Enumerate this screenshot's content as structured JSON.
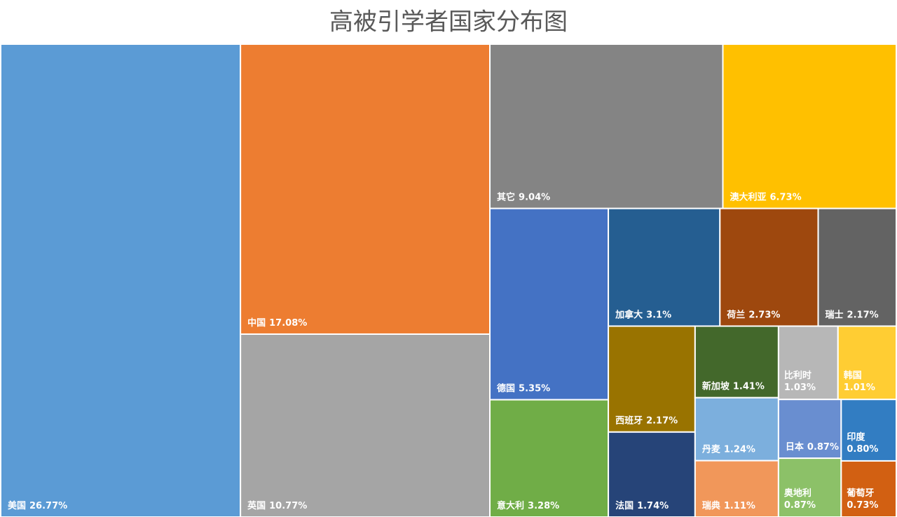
{
  "chart_data": {
    "type": "treemap",
    "title": "高被引学者国家分布图",
    "categories": [
      "美国",
      "中国",
      "英国",
      "其它",
      "澳大利亚",
      "德国",
      "意大利",
      "加拿大",
      "荷兰",
      "瑞士",
      "西班牙",
      "法国",
      "新加坡",
      "丹麦",
      "瑞典",
      "比利时",
      "韩国",
      "日本",
      "奥地利",
      "印度",
      "葡萄牙"
    ],
    "values": [
      26.77,
      17.08,
      10.77,
      9.04,
      6.73,
      5.35,
      3.28,
      3.1,
      2.73,
      2.17,
      2.17,
      1.74,
      1.41,
      1.24,
      1.11,
      1.03,
      1.01,
      0.87,
      0.87,
      0.8,
      0.73
    ],
    "value_labels": [
      "26.77%",
      "17.08%",
      "10.77%",
      "9.04%",
      "6.73%",
      "5.35%",
      "3.28%",
      "3.1%",
      "2.73%",
      "2.17%",
      "2.17%",
      "1.74%",
      "1.41%",
      "1.24%",
      "1.11%",
      "1.03%",
      "1.01%",
      "0.87%",
      "0.87%",
      "0.80%",
      "0.73%"
    ],
    "colors": [
      "#5b9bd5",
      "#ed7d31",
      "#a5a5a5",
      "#848484",
      "#ffc000",
      "#4472c4",
      "#70ad47",
      "#255e91",
      "#9e480e",
      "#636363",
      "#997300",
      "#264478",
      "#43682b",
      "#7cafdd",
      "#f1975a",
      "#b7b7b7",
      "#ffcd33",
      "#698ed0",
      "#8cc168",
      "#327dc2",
      "#d26012"
    ]
  }
}
